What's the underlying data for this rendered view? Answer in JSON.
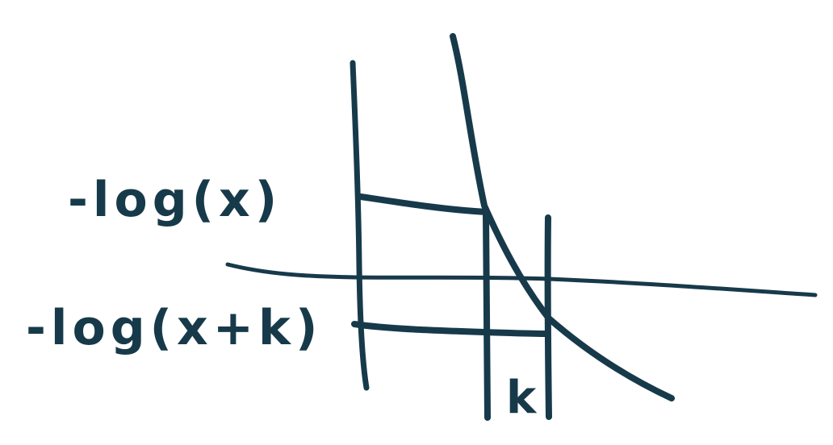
{
  "labels": {
    "upper": "-log(x)",
    "lower": "-log(x+k)",
    "gap": "k"
  },
  "colors": {
    "ink": "#173a4a",
    "background": "#ffffff"
  }
}
